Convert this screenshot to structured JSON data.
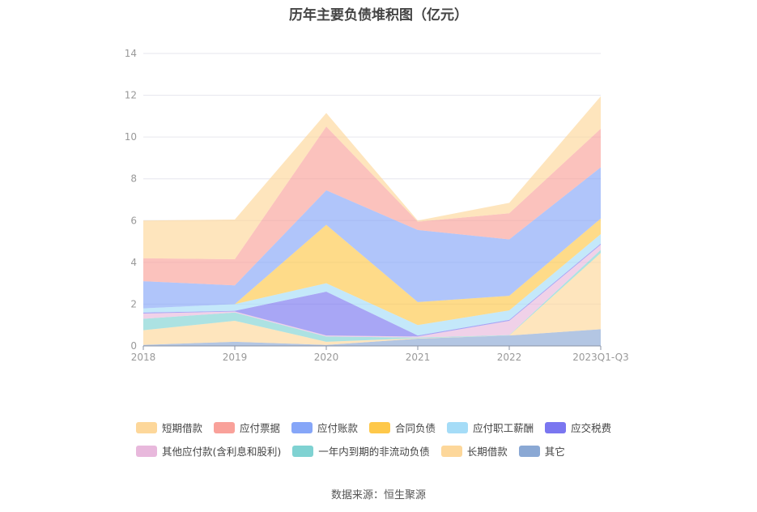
{
  "chart_data": {
    "type": "area",
    "stacked": true,
    "title": "历年主要负债堆积图（亿元）",
    "categories": [
      "2018",
      "2019",
      "2020",
      "2021",
      "2022",
      "2023Q1-Q3"
    ],
    "ylim": [
      0,
      14
    ],
    "yticks": [
      "0",
      "2",
      "4",
      "6",
      "8",
      "10",
      "12",
      "14"
    ],
    "grid": true,
    "legend_position": "bottom",
    "series": [
      {
        "name": "其它",
        "color": "#8aa8d4",
        "values": [
          0.05,
          0.2,
          0.05,
          0.35,
          0.5,
          0.8
        ]
      },
      {
        "name": "长期借款",
        "color": "#fdd79a",
        "values": [
          0.7,
          1.0,
          0.15,
          0.02,
          0.0,
          3.65
        ]
      },
      {
        "name": "一年内到期的非流动负债",
        "color": "#7fd2d2",
        "values": [
          0.55,
          0.4,
          0.25,
          0.03,
          0.02,
          0.15
        ]
      },
      {
        "name": "其他应付款(含利息和股利)",
        "color": "#e8b8dc",
        "values": [
          0.25,
          0.05,
          0.05,
          0.05,
          0.68,
          0.25
        ]
      },
      {
        "name": "应交税费",
        "color": "#7a76f0",
        "values": [
          0.05,
          0.03,
          2.1,
          0.05,
          0.05,
          0.05
        ]
      },
      {
        "name": "应付职工薪酬",
        "color": "#a5dcf7",
        "values": [
          0.2,
          0.32,
          0.4,
          0.5,
          0.45,
          0.45
        ]
      },
      {
        "name": "合同负债",
        "color": "#fec84a",
        "values": [
          0.0,
          0.0,
          2.8,
          1.1,
          0.7,
          0.75
        ]
      },
      {
        "name": "应付账款",
        "color": "#86a6f8",
        "values": [
          1.3,
          0.9,
          1.65,
          3.45,
          2.7,
          2.45
        ]
      },
      {
        "name": "应付票据",
        "color": "#f9a19a",
        "values": [
          1.1,
          1.25,
          3.05,
          0.4,
          1.25,
          1.85
        ]
      },
      {
        "name": "短期借款",
        "color": "#fdd79a",
        "values": [
          1.8,
          1.9,
          0.65,
          0.05,
          0.5,
          1.55
        ]
      }
    ],
    "legend_order": [
      "短期借款",
      "应付票据",
      "应付账款",
      "合同负债",
      "应付职工薪酬",
      "应交税费",
      "其他应付款(含利息和股利)",
      "一年内到期的非流动负债",
      "长期借款",
      "其它"
    ]
  },
  "source": "数据来源：恒生聚源"
}
